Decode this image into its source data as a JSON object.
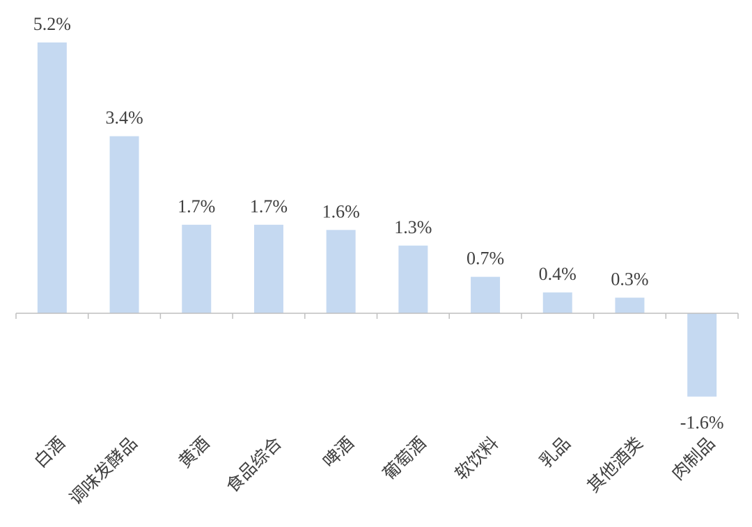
{
  "chart_data": {
    "type": "bar",
    "title": "",
    "xlabel": "",
    "ylabel": "",
    "categories": [
      "白酒",
      "调味发酵品",
      "黄酒",
      "食品综合",
      "啤酒",
      "葡萄酒",
      "软饮料",
      "乳品",
      "其他酒类",
      "肉制品"
    ],
    "values": [
      5.2,
      3.4,
      1.7,
      1.7,
      1.6,
      1.3,
      0.7,
      0.4,
      0.3,
      -1.6
    ],
    "data_labels": [
      "5.2%",
      "3.4%",
      "1.7%",
      "1.7%",
      "1.6%",
      "1.3%",
      "0.7%",
      "0.4%",
      "0.3%",
      "-1.6%"
    ],
    "ylim": [
      -1.6,
      5.2
    ],
    "grid": false,
    "legend": "none",
    "bar_color": "#c5d9f1"
  }
}
